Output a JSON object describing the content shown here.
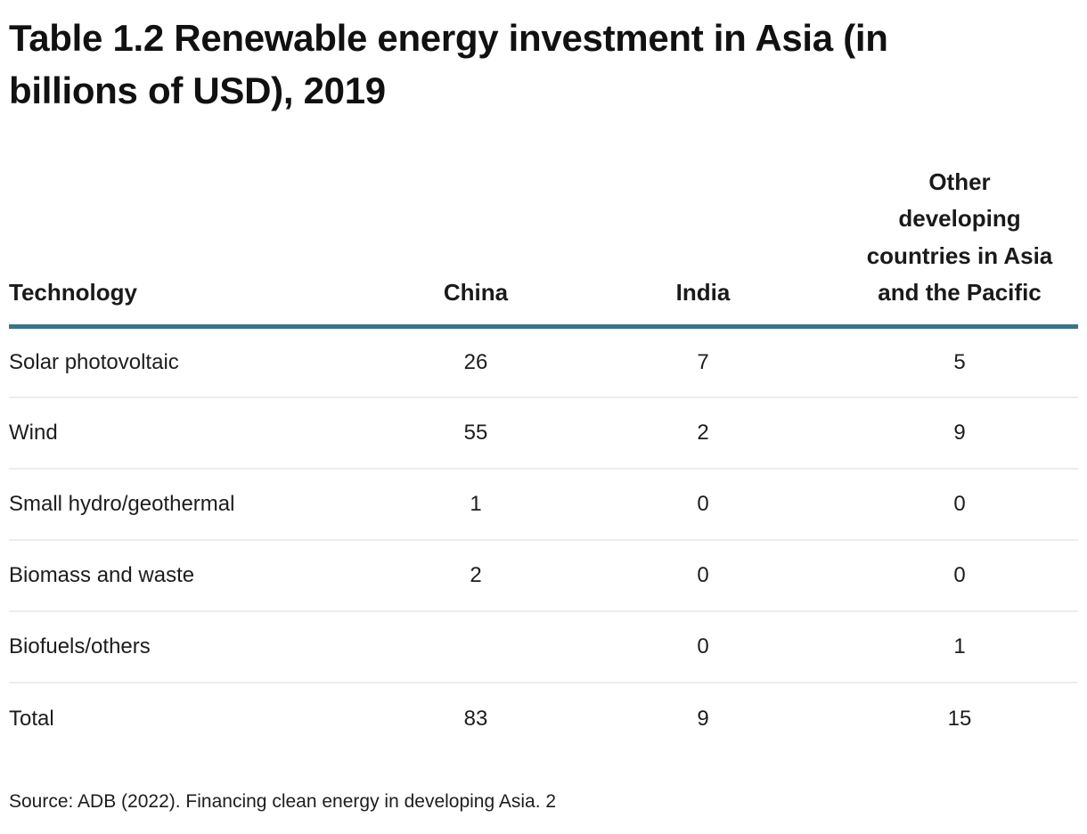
{
  "title": "Table 1.2 Renewable energy investment in Asia (in billions of USD), 2019",
  "header": {
    "technology": "Technology",
    "china": "China",
    "india": "India",
    "other_lines": [
      "Other",
      "developing",
      "countries in Asia",
      "and the Pacific"
    ]
  },
  "rows": [
    {
      "cells": [
        "Solar photovoltaic",
        "26",
        "7",
        "5"
      ]
    },
    {
      "cells": [
        "Wind",
        "55",
        "2",
        "9"
      ]
    },
    {
      "cells": [
        "Small hydro/geothermal",
        "1",
        "0",
        "0"
      ]
    },
    {
      "cells": [
        "Biomass and waste",
        "2",
        "0",
        "0"
      ]
    },
    {
      "cells": [
        "Biofuels/others",
        "",
        "0",
        "1"
      ]
    },
    {
      "cells": [
        "Total",
        "83",
        "9",
        "15"
      ]
    }
  ],
  "source": "Source: ADB (2022). Financing clean energy in developing Asia. 2",
  "colors": {
    "header_rule": "#36748e",
    "row_divider": "#ededed",
    "title_text": "#111111",
    "body_text": "#1d1d1d"
  },
  "chart_data": {
    "type": "table",
    "title": "Table 1.2 Renewable energy investment in Asia (in billions of USD), 2019",
    "columns": [
      "Technology",
      "China",
      "India",
      "Other developing countries in Asia and the Pacific"
    ],
    "categories": [
      "Solar photovoltaic",
      "Wind",
      "Small hydro/geothermal",
      "Biomass and waste",
      "Biofuels/others",
      "Total"
    ],
    "series": [
      {
        "name": "China",
        "values": [
          26,
          55,
          1,
          2,
          null,
          83
        ]
      },
      {
        "name": "India",
        "values": [
          7,
          2,
          0,
          0,
          0,
          9
        ]
      },
      {
        "name": "Other developing countries in Asia and the Pacific",
        "values": [
          5,
          9,
          0,
          0,
          1,
          15
        ]
      }
    ],
    "source": "Source: ADB (2022). Financing clean energy in developing Asia. 2"
  }
}
